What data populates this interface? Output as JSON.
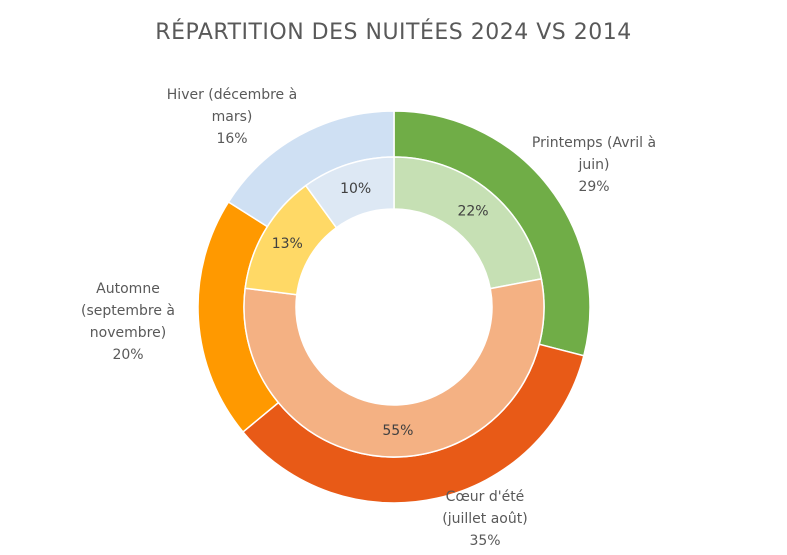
{
  "chart_data": {
    "type": "donut",
    "title": "RÉPARTITION DES NUITÉES 2024 VS 2014",
    "categories": [
      "Printemps (Avril à juin)",
      "Cœur d'été (juillet août)",
      "Automne (septembre à novembre)",
      "Hiver (décembre à mars)"
    ],
    "series": [
      {
        "values": [
          29,
          35,
          20,
          16
        ],
        "value_labels": [
          "29%",
          "35%",
          "20%",
          "16%"
        ],
        "colors": [
          "#70ad47",
          "#e85a17",
          "#ff9900",
          "#cfe0f3"
        ]
      },
      {
        "values": [
          22,
          55,
          13,
          10
        ],
        "value_labels": [
          "22%",
          "55%",
          "13%",
          "10%"
        ],
        "colors": [
          "#c6e0b4",
          "#f4b183",
          "#ffd966",
          "#dde8f4"
        ]
      }
    ]
  }
}
